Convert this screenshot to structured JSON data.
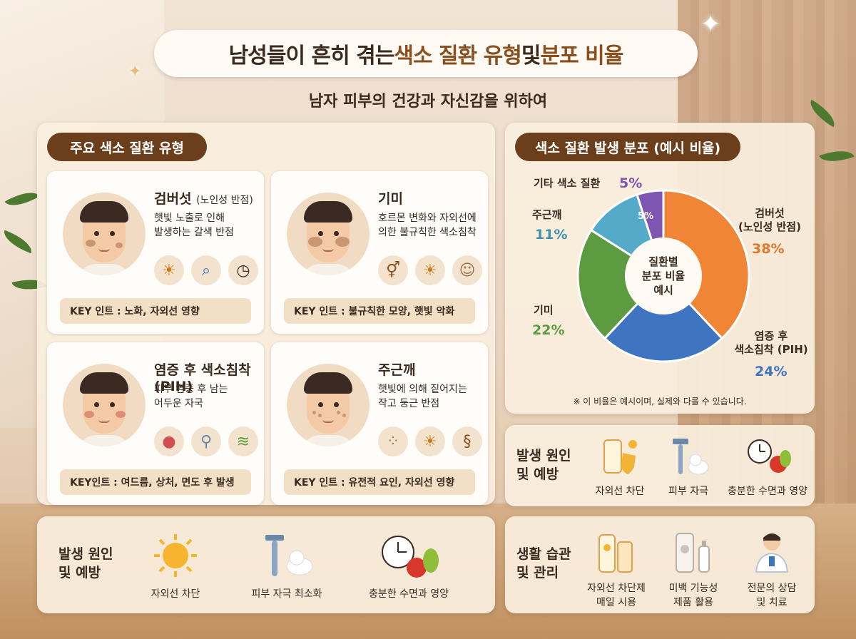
{
  "header": {
    "title_pre": "남성들이 흔히 겪는 ",
    "title_hl1": "색소 질환 유형",
    "title_mid": " 및 ",
    "title_hl2": "분포 비율",
    "subtitle": "남자 피부의 건강과 자신감을 위하여"
  },
  "types_section": {
    "label": "주요 색소 질환 유형",
    "cards": [
      {
        "title": "검버섯",
        "title_sub": "(노인성 반점)",
        "desc_lines": [
          "햇빛 노출로 인해",
          "발생하는 갈색 반점"
        ],
        "icons": [
          "sun-icon",
          "magnifier-icon",
          "clock-icon"
        ],
        "key": "KEY 인트 : 노화, 자외선 영향"
      },
      {
        "title": "기미",
        "title_sub": "",
        "desc_lines": [
          "호르몬 변화와 자외선에",
          "의한 불규칙한 색소침착"
        ],
        "icons": [
          "gender-icon",
          "sun-icon",
          "face-icon"
        ],
        "key": "KEY 인트 : 불규칙한 모양, 햇빛 악화"
      },
      {
        "title": "염증 후 색소침착 (PIH)",
        "title_sub": "",
        "desc_lines": [
          "피부 염증 후 남는",
          "어두운 자국"
        ],
        "icons": [
          "pimple-icon",
          "razor-icon",
          "skin-layer-icon"
        ],
        "key": "KEY인트 : 여드름, 상처, 면도 후 발생"
      },
      {
        "title": "주근깨",
        "title_sub": "",
        "desc_lines": [
          "햇빛에 의해 짙어지는",
          "작고 둥근 반점"
        ],
        "icons": [
          "dots-icon",
          "sun-icon",
          "dna-icon"
        ],
        "key": "KEY 인트 : 유전적 요인, 자외선 영향"
      }
    ]
  },
  "chart_panel": {
    "label": "색소 질환 발생 분포 (예시 비율)",
    "center_lines": [
      "질환별",
      "분포 비율",
      "예시"
    ],
    "note": "※ 이 비율은 예시이며, 실제와 다를 수 있습니다.",
    "inner_label_other": "5%"
  },
  "chart_data": {
    "type": "pie",
    "title": "색소 질환 발생 분포 (예시 비율)",
    "slices": [
      {
        "label": "검버섯 (노인성 반점)",
        "line1": "검버섯",
        "line2": "(노인성 반점)",
        "value": 38,
        "pct": "38%",
        "color": "#ef8535"
      },
      {
        "label": "염증 후 색소침착 (PIH)",
        "line1": "염증 후",
        "line2": "색소침착 (PIH)",
        "value": 24,
        "pct": "24%",
        "color": "#3e74c0"
      },
      {
        "label": "기미",
        "line1": "기미",
        "line2": "",
        "value": 22,
        "pct": "22%",
        "color": "#5d9b40"
      },
      {
        "label": "주근깨",
        "line1": "주근깨",
        "line2": "",
        "value": 11,
        "pct": "11%",
        "color": "#56aac9"
      },
      {
        "label": "기타 색소 질환",
        "line1": "기타 색소 질환",
        "line2": "",
        "value": 5,
        "pct": "5%",
        "color": "#7e55b0"
      }
    ]
  },
  "right_causes": {
    "heading_lines": [
      "발생 원인",
      "및 예방"
    ],
    "items": [
      "자외선 차단",
      "피부 자극",
      "충분한 수면과 영양"
    ]
  },
  "bottom_causes": {
    "heading_lines": [
      "발생 원인",
      "및 예방"
    ],
    "items": [
      "자외선 차단",
      "피부 자극 최소화",
      "충분한 수면과 영양"
    ]
  },
  "lifestyle": {
    "heading_lines": [
      "생활 습관",
      "및 관리"
    ],
    "items": [
      [
        "자외선 차단제",
        "매일 시용"
      ],
      [
        "미백 기능성",
        "제품 활용"
      ],
      [
        "전문의 상담",
        "및 치료"
      ]
    ]
  },
  "colors": {
    "brown_accent": "#6b3e1c",
    "title_highlight": "#8a4f1d"
  }
}
